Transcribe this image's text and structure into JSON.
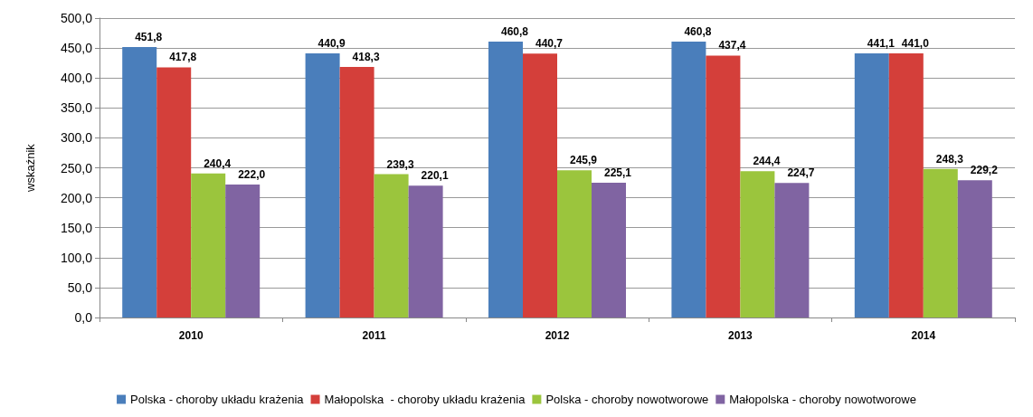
{
  "chart_data": {
    "type": "bar",
    "ylabel": "wskaźnik",
    "categories": [
      "2010",
      "2011",
      "2012",
      "2013",
      "2014"
    ],
    "series": [
      {
        "name": "Polska - choroby układu krażenia",
        "color": "#4a7ebb",
        "values": [
          451.8,
          440.9,
          460.8,
          460.8,
          441.1
        ],
        "value_labels": [
          "451,8",
          "440,9",
          "460,8",
          "460,8",
          "441,1"
        ]
      },
      {
        "name": "Małopolska  - choroby układu krażenia",
        "color": "#d43f3a",
        "values": [
          417.8,
          418.3,
          440.7,
          437.4,
          441.0
        ],
        "value_labels": [
          "417,8",
          "418,3",
          "440,7",
          "437,4",
          "441,0"
        ]
      },
      {
        "name": "Polska - choroby nowotworowe",
        "color": "#9bc53d",
        "values": [
          240.4,
          239.3,
          245.9,
          244.4,
          248.3
        ],
        "value_labels": [
          "240,4",
          "239,3",
          "245,9",
          "244,4",
          "248,3"
        ]
      },
      {
        "name": "Małopolska - choroby nowotworowe",
        "color": "#8064a2",
        "values": [
          222.0,
          220.1,
          225.1,
          224.7,
          229.2
        ],
        "value_labels": [
          "222,0",
          "220,1",
          "225,1",
          "224,7",
          "229,2"
        ]
      }
    ],
    "ylim": [
      0,
      500
    ],
    "yticks": [
      {
        "value": 0,
        "label": "0,0"
      },
      {
        "value": 50,
        "label": "50,0"
      },
      {
        "value": 100,
        "label": "100,0"
      },
      {
        "value": 150,
        "label": "150,0"
      },
      {
        "value": 200,
        "label": "200,0"
      },
      {
        "value": 250,
        "label": "250,0"
      },
      {
        "value": 300,
        "label": "300,0"
      },
      {
        "value": 350,
        "label": "350,0"
      },
      {
        "value": 400,
        "label": "400,0"
      },
      {
        "value": 450,
        "label": "450,0"
      },
      {
        "value": 500,
        "label": "500,0"
      }
    ],
    "grid": true,
    "legend": "bottom"
  }
}
